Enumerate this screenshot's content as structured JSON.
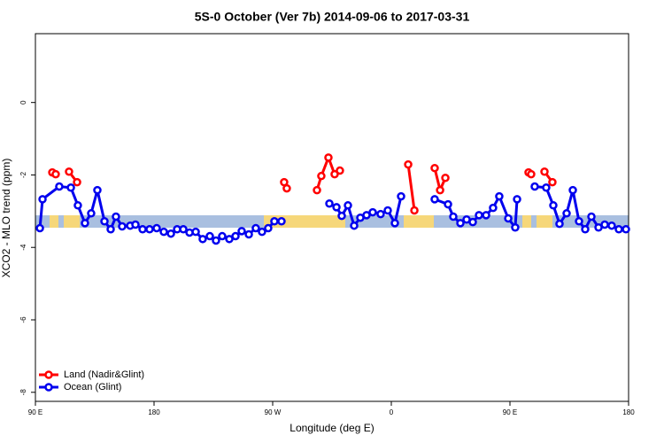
{
  "chart_data": {
    "type": "line",
    "title": "5S-0 October (Ver 7b)   2014-09-06 to 2017-03-31",
    "x_label": "Longitude (deg E)",
    "y_label": "XCO2 - MLO trend (ppm)",
    "xlim": [
      90,
      540
    ],
    "ylim": [
      -8.25,
      1.9
    ],
    "xticks": [
      {
        "value": 90,
        "label": "90 E"
      },
      180,
      {
        "value": 270,
        "label": "90 W"
      },
      {
        "value": 360,
        "label": "0"
      },
      {
        "value": 450,
        "label": "90 E"
      },
      {
        "value": 540,
        "label": "180"
      }
    ],
    "yticks": [
      0,
      -2,
      -4,
      -6,
      -8
    ],
    "legend": "bottom-left",
    "series": [
      {
        "name": "Land (Nadir&Glint)",
        "color": "#ff0000",
        "x": [
          102.8,
          105.4,
          null,
          115.5,
          121.6,
          null,
          278.7,
          280.7,
          null,
          303.6,
          306.9,
          312.3,
          317.0,
          321.0,
          null,
          372.8,
          377.5,
          null,
          392.9,
          397.0,
          401.0,
          null,
          464.1,
          466.1,
          null,
          476.2,
          482.2
        ],
        "values": [
          -1.93,
          -1.98,
          null,
          -1.91,
          -2.2,
          null,
          -2.2,
          -2.37,
          null,
          -2.42,
          -2.03,
          -1.52,
          -1.98,
          -1.88,
          null,
          -1.71,
          -2.98,
          null,
          -1.81,
          -2.42,
          -2.08,
          null,
          -1.93,
          -1.98,
          null,
          -1.91,
          -2.2
        ]
      },
      {
        "name": "Ocean (Glint)",
        "color": "#0000ee",
        "x": [
          93.4,
          95.4,
          108.1,
          116.9,
          122.2,
          127.6,
          132.3,
          137.0,
          142.4,
          147.1,
          151.1,
          155.8,
          161.9,
          165.9,
          171.3,
          176.6,
          182.0,
          187.4,
          192.8,
          197.5,
          202.2,
          206.9,
          211.6,
          216.9,
          222.3,
          227.0,
          231.7,
          237.1,
          241.8,
          246.5,
          251.9,
          257.2,
          261.9,
          266.6,
          271.3,
          276.7,
          null,
          313.0,
          318.4,
          322.4,
          327.1,
          331.8,
          336.5,
          341.2,
          345.9,
          351.9,
          357.3,
          362.7,
          367.4,
          null,
          392.9,
          403.0,
          407.0,
          412.4,
          417.1,
          421.8,
          426.5,
          431.9,
          437.2,
          441.9,
          448.7,
          454.0,
          455.4,
          null,
          468.8,
          477.5,
          482.9,
          487.6,
          493.0,
          497.7,
          502.4,
          507.1,
          511.8,
          517.2,
          521.9,
          527.2,
          532.6,
          538.0
        ],
        "values": [
          -3.47,
          -2.67,
          -2.32,
          -2.35,
          -2.84,
          -3.33,
          -3.06,
          -2.42,
          -3.28,
          -3.5,
          -3.15,
          -3.42,
          -3.4,
          -3.37,
          -3.5,
          -3.5,
          -3.47,
          -3.57,
          -3.62,
          -3.5,
          -3.5,
          -3.59,
          -3.57,
          -3.77,
          -3.69,
          -3.81,
          -3.69,
          -3.77,
          -3.69,
          -3.55,
          -3.64,
          -3.47,
          -3.57,
          -3.47,
          -3.28,
          -3.28,
          null,
          -2.79,
          -2.89,
          -3.13,
          -2.84,
          -3.4,
          -3.18,
          -3.11,
          -3.03,
          -3.08,
          -2.98,
          -3.33,
          -2.59,
          null,
          -2.67,
          -2.81,
          -3.15,
          -3.33,
          -3.23,
          -3.3,
          -3.11,
          -3.11,
          -2.91,
          -2.59,
          -3.2,
          -3.45,
          -2.67,
          null,
          -2.32,
          -2.35,
          -2.84,
          -3.35,
          -3.06,
          -2.42,
          -3.28,
          -3.5,
          -3.15,
          -3.45,
          -3.37,
          -3.4,
          -3.5,
          -3.5
        ]
      }
    ]
  }
}
